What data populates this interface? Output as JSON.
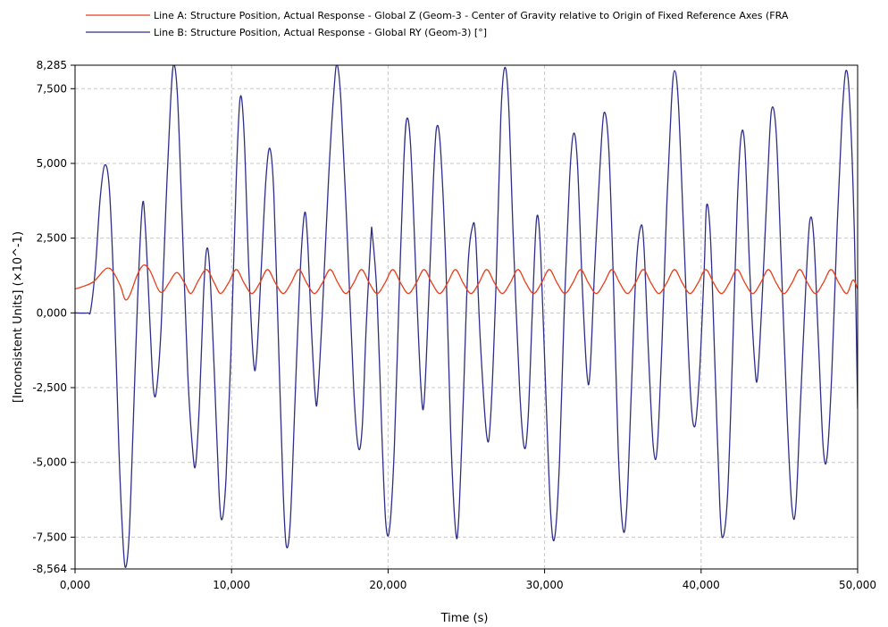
{
  "chart_data": {
    "type": "line",
    "xlabel": "Time (s)",
    "ylabel": "[Inconsistent Units] (×10^-1)",
    "xlim": [
      0,
      50
    ],
    "ylim": [
      -8.564,
      8.285
    ],
    "x_ticks": [
      {
        "value": 0,
        "label": "0,000"
      },
      {
        "value": 10,
        "label": "10,000"
      },
      {
        "value": 20,
        "label": "20,000"
      },
      {
        "value": 30,
        "label": "30,000"
      },
      {
        "value": 40,
        "label": "40,000"
      },
      {
        "value": 50,
        "label": "50,000"
      }
    ],
    "y_ticks": [
      {
        "value": 8.285,
        "label": "8,285"
      },
      {
        "value": 7.5,
        "label": "7,500"
      },
      {
        "value": 5.0,
        "label": "5,000"
      },
      {
        "value": 2.5,
        "label": "2,500"
      },
      {
        "value": 0.0,
        "label": "0,000"
      },
      {
        "value": -2.5,
        "label": "-2,500"
      },
      {
        "value": -5.0,
        "label": "-5,000"
      },
      {
        "value": -7.5,
        "label": "-7,500"
      },
      {
        "value": -8.564,
        "label": "-8,564"
      }
    ],
    "grid": true,
    "legend_position": "top",
    "series": [
      {
        "name": "Line A: Structure Position, Actual Response - Global Z (Geom-3 - Center of Gravity relative to Origin of Fixed Reference Axes (FRA",
        "color": "#e8401c",
        "points": [
          [
            0.0,
            0.8
          ],
          [
            0.6,
            0.9
          ],
          [
            1.2,
            1.05
          ],
          [
            1.8,
            1.4
          ],
          [
            2.1,
            1.5
          ],
          [
            2.4,
            1.4
          ],
          [
            2.9,
            0.9
          ],
          [
            3.2,
            0.45
          ],
          [
            3.5,
            0.6
          ],
          [
            4.0,
            1.3
          ],
          [
            4.4,
            1.6
          ],
          [
            4.8,
            1.4
          ],
          [
            5.3,
            0.8
          ],
          [
            5.6,
            0.7
          ],
          [
            6.0,
            1.0
          ],
          [
            6.5,
            1.35
          ],
          [
            7.0,
            1.0
          ],
          [
            7.4,
            0.65
          ],
          [
            7.9,
            1.1
          ],
          [
            8.4,
            1.45
          ],
          [
            8.9,
            1.0
          ],
          [
            9.3,
            0.65
          ],
          [
            9.8,
            1.0
          ],
          [
            10.3,
            1.45
          ],
          [
            10.8,
            1.0
          ],
          [
            11.3,
            0.65
          ],
          [
            11.8,
            1.0
          ],
          [
            12.3,
            1.45
          ],
          [
            12.8,
            1.0
          ],
          [
            13.3,
            0.65
          ],
          [
            13.8,
            1.0
          ],
          [
            14.3,
            1.45
          ],
          [
            14.8,
            1.0
          ],
          [
            15.3,
            0.65
          ],
          [
            15.8,
            1.0
          ],
          [
            16.3,
            1.45
          ],
          [
            16.8,
            1.0
          ],
          [
            17.3,
            0.65
          ],
          [
            17.8,
            1.0
          ],
          [
            18.3,
            1.45
          ],
          [
            18.8,
            1.0
          ],
          [
            19.3,
            0.65
          ],
          [
            19.8,
            1.0
          ],
          [
            20.3,
            1.45
          ],
          [
            20.8,
            1.0
          ],
          [
            21.3,
            0.65
          ],
          [
            21.8,
            1.0
          ],
          [
            22.3,
            1.45
          ],
          [
            22.8,
            1.0
          ],
          [
            23.3,
            0.65
          ],
          [
            23.8,
            1.0
          ],
          [
            24.3,
            1.45
          ],
          [
            24.8,
            1.0
          ],
          [
            25.3,
            0.65
          ],
          [
            25.8,
            1.0
          ],
          [
            26.3,
            1.45
          ],
          [
            26.8,
            1.0
          ],
          [
            27.3,
            0.65
          ],
          [
            27.8,
            1.0
          ],
          [
            28.3,
            1.45
          ],
          [
            28.8,
            1.0
          ],
          [
            29.3,
            0.65
          ],
          [
            29.8,
            1.0
          ],
          [
            30.3,
            1.45
          ],
          [
            30.8,
            1.0
          ],
          [
            31.3,
            0.65
          ],
          [
            31.8,
            1.0
          ],
          [
            32.3,
            1.45
          ],
          [
            32.8,
            1.0
          ],
          [
            33.3,
            0.65
          ],
          [
            33.8,
            1.0
          ],
          [
            34.3,
            1.45
          ],
          [
            34.8,
            1.0
          ],
          [
            35.3,
            0.65
          ],
          [
            35.8,
            1.0
          ],
          [
            36.3,
            1.45
          ],
          [
            36.8,
            1.0
          ],
          [
            37.3,
            0.65
          ],
          [
            37.8,
            1.0
          ],
          [
            38.3,
            1.45
          ],
          [
            38.8,
            1.0
          ],
          [
            39.3,
            0.65
          ],
          [
            39.8,
            1.0
          ],
          [
            40.3,
            1.45
          ],
          [
            40.8,
            1.0
          ],
          [
            41.3,
            0.65
          ],
          [
            41.8,
            1.0
          ],
          [
            42.3,
            1.45
          ],
          [
            42.8,
            1.0
          ],
          [
            43.3,
            0.65
          ],
          [
            43.8,
            1.0
          ],
          [
            44.3,
            1.45
          ],
          [
            44.8,
            1.0
          ],
          [
            45.3,
            0.65
          ],
          [
            45.8,
            1.0
          ],
          [
            46.3,
            1.45
          ],
          [
            46.8,
            1.0
          ],
          [
            47.3,
            0.65
          ],
          [
            47.8,
            1.0
          ],
          [
            48.3,
            1.45
          ],
          [
            48.8,
            1.0
          ],
          [
            49.3,
            0.65
          ],
          [
            49.7,
            1.1
          ],
          [
            50.0,
            0.8
          ]
        ]
      },
      {
        "name": "Line B: Structure Position, Actual Response - Global RY (Geom-3) [°]",
        "color": "#2e2e8a",
        "points": [
          [
            0.0,
            0.0
          ],
          [
            0.8,
            0.0
          ],
          [
            1.0,
            0.1
          ],
          [
            1.3,
            1.5
          ],
          [
            1.6,
            3.8
          ],
          [
            1.9,
            4.95
          ],
          [
            2.2,
            4.1
          ],
          [
            2.5,
            0.5
          ],
          [
            2.8,
            -4.5
          ],
          [
            3.0,
            -7.0
          ],
          [
            3.2,
            -8.5
          ],
          [
            3.45,
            -7.5
          ],
          [
            3.7,
            -4.0
          ],
          [
            4.0,
            0.5
          ],
          [
            4.3,
            3.6
          ],
          [
            4.5,
            2.8
          ],
          [
            4.8,
            -0.5
          ],
          [
            5.0,
            -2.5
          ],
          [
            5.2,
            -2.6
          ],
          [
            5.5,
            -0.5
          ],
          [
            5.8,
            3.5
          ],
          [
            6.1,
            7.0
          ],
          [
            6.3,
            8.3
          ],
          [
            6.55,
            7.2
          ],
          [
            6.85,
            3.0
          ],
          [
            7.2,
            -2.0
          ],
          [
            7.5,
            -4.5
          ],
          [
            7.7,
            -5.1
          ],
          [
            7.95,
            -3.0
          ],
          [
            8.2,
            0.5
          ],
          [
            8.4,
            2.1
          ],
          [
            8.6,
            1.5
          ],
          [
            8.9,
            -2.0
          ],
          [
            9.2,
            -6.0
          ],
          [
            9.4,
            -6.9
          ],
          [
            9.65,
            -5.5
          ],
          [
            9.95,
            -1.5
          ],
          [
            10.3,
            4.5
          ],
          [
            10.55,
            7.2
          ],
          [
            10.8,
            6.0
          ],
          [
            11.1,
            1.5
          ],
          [
            11.4,
            -1.6
          ],
          [
            11.6,
            -1.5
          ],
          [
            11.9,
            1.5
          ],
          [
            12.2,
            4.5
          ],
          [
            12.45,
            5.5
          ],
          [
            12.7,
            4.0
          ],
          [
            13.0,
            -1.0
          ],
          [
            13.3,
            -6.0
          ],
          [
            13.5,
            -7.8
          ],
          [
            13.75,
            -7.0
          ],
          [
            14.05,
            -3.0
          ],
          [
            14.35,
            1.0
          ],
          [
            14.65,
            3.3
          ],
          [
            14.85,
            2.5
          ],
          [
            15.1,
            -0.5
          ],
          [
            15.35,
            -2.8
          ],
          [
            15.5,
            -2.8
          ],
          [
            15.8,
            0.0
          ],
          [
            16.2,
            4.5
          ],
          [
            16.55,
            7.5
          ],
          [
            16.75,
            8.3
          ],
          [
            17.0,
            7.0
          ],
          [
            17.4,
            2.5
          ],
          [
            17.8,
            -2.5
          ],
          [
            18.1,
            -4.5
          ],
          [
            18.35,
            -3.8
          ],
          [
            18.6,
            -0.5
          ],
          [
            18.9,
            2.5
          ],
          [
            19.0,
            2.6
          ],
          [
            19.3,
            0.5
          ],
          [
            19.6,
            -4.0
          ],
          [
            19.85,
            -7.0
          ],
          [
            20.1,
            -7.2
          ],
          [
            20.4,
            -4.5
          ],
          [
            20.7,
            0.5
          ],
          [
            21.0,
            5.0
          ],
          [
            21.2,
            6.5
          ],
          [
            21.45,
            5.5
          ],
          [
            21.8,
            1.0
          ],
          [
            22.1,
            -2.5
          ],
          [
            22.3,
            -3.0
          ],
          [
            22.6,
            0.5
          ],
          [
            22.9,
            4.5
          ],
          [
            23.1,
            6.2
          ],
          [
            23.35,
            5.5
          ],
          [
            23.7,
            1.5
          ],
          [
            24.0,
            -4.0
          ],
          [
            24.3,
            -7.2
          ],
          [
            24.5,
            -7.0
          ],
          [
            24.8,
            -3.0
          ],
          [
            25.1,
            1.5
          ],
          [
            25.4,
            2.9
          ],
          [
            25.6,
            2.5
          ],
          [
            25.9,
            -1.0
          ],
          [
            26.3,
            -4.1
          ],
          [
            26.55,
            -3.5
          ],
          [
            26.9,
            1.0
          ],
          [
            27.2,
            6.5
          ],
          [
            27.45,
            8.2
          ],
          [
            27.7,
            7.0
          ],
          [
            28.0,
            2.5
          ],
          [
            28.4,
            -2.5
          ],
          [
            28.7,
            -4.5
          ],
          [
            28.95,
            -3.5
          ],
          [
            29.25,
            0.5
          ],
          [
            29.5,
            3.2
          ],
          [
            29.75,
            2.0
          ],
          [
            30.1,
            -3.0
          ],
          [
            30.4,
            -6.8
          ],
          [
            30.65,
            -7.5
          ],
          [
            30.95,
            -5.0
          ],
          [
            31.25,
            0.0
          ],
          [
            31.6,
            4.5
          ],
          [
            31.85,
            6.0
          ],
          [
            32.1,
            5.0
          ],
          [
            32.4,
            1.0
          ],
          [
            32.7,
            -2.0
          ],
          [
            32.9,
            -2.0
          ],
          [
            33.2,
            1.5
          ],
          [
            33.55,
            5.0
          ],
          [
            33.8,
            6.7
          ],
          [
            34.1,
            5.5
          ],
          [
            34.4,
            1.0
          ],
          [
            34.7,
            -4.5
          ],
          [
            35.0,
            -7.2
          ],
          [
            35.25,
            -6.5
          ],
          [
            35.55,
            -2.5
          ],
          [
            35.85,
            1.5
          ],
          [
            36.15,
            2.9
          ],
          [
            36.35,
            2.2
          ],
          [
            36.65,
            -1.5
          ],
          [
            36.95,
            -4.5
          ],
          [
            37.2,
            -4.5
          ],
          [
            37.5,
            -1.0
          ],
          [
            37.8,
            3.5
          ],
          [
            38.1,
            7.0
          ],
          [
            38.3,
            8.1
          ],
          [
            38.55,
            7.0
          ],
          [
            38.9,
            2.5
          ],
          [
            39.3,
            -2.5
          ],
          [
            39.6,
            -3.8
          ],
          [
            39.9,
            -2.0
          ],
          [
            40.2,
            1.5
          ],
          [
            40.35,
            3.6
          ],
          [
            40.6,
            2.5
          ],
          [
            40.9,
            -2.0
          ],
          [
            41.2,
            -6.5
          ],
          [
            41.4,
            -7.5
          ],
          [
            41.7,
            -6.0
          ],
          [
            42.0,
            -1.5
          ],
          [
            42.3,
            3.5
          ],
          [
            42.55,
            5.9
          ],
          [
            42.8,
            5.5
          ],
          [
            43.1,
            1.5
          ],
          [
            43.4,
            -1.5
          ],
          [
            43.6,
            -2.2
          ],
          [
            43.9,
            0.5
          ],
          [
            44.25,
            4.5
          ],
          [
            44.5,
            6.8
          ],
          [
            44.8,
            6.0
          ],
          [
            45.1,
            2.0
          ],
          [
            45.5,
            -3.5
          ],
          [
            45.8,
            -6.5
          ],
          [
            46.05,
            -6.5
          ],
          [
            46.35,
            -3.0
          ],
          [
            46.7,
            1.0
          ],
          [
            46.95,
            3.1
          ],
          [
            47.2,
            2.5
          ],
          [
            47.5,
            -1.0
          ],
          [
            47.8,
            -4.5
          ],
          [
            48.05,
            -4.8
          ],
          [
            48.35,
            -2.0
          ],
          [
            48.7,
            3.0
          ],
          [
            49.0,
            6.5
          ],
          [
            49.25,
            8.1
          ],
          [
            49.5,
            7.0
          ],
          [
            49.8,
            2.5
          ],
          [
            50.0,
            -3.2
          ]
        ]
      }
    ]
  }
}
